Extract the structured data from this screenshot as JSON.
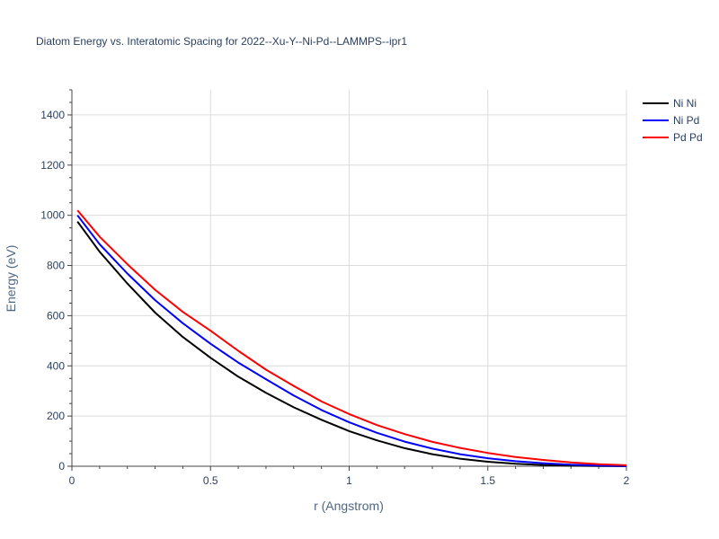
{
  "chart_data": {
    "type": "line",
    "title": "Diatom Energy vs. Interatomic Spacing for 2022--Xu-Y--Ni-Pd--LAMMPS--ipr1",
    "xlabel": "r (Angstrom)",
    "ylabel": "Energy (eV)",
    "xlim": [
      0,
      2
    ],
    "ylim": [
      0,
      1500
    ],
    "x_ticks": [
      0,
      0.5,
      1,
      1.5,
      2
    ],
    "x_tick_labels": [
      "0",
      "0.5",
      "1",
      "1.5",
      "2"
    ],
    "y_ticks": [
      0,
      200,
      400,
      600,
      800,
      1000,
      1200,
      1400
    ],
    "y_tick_labels": [
      "0",
      "200",
      "400",
      "600",
      "800",
      "1000",
      "1200",
      "1400"
    ],
    "grid": true,
    "legend_position": "top-right",
    "series": [
      {
        "name": "Ni Ni",
        "color": "#000000",
        "x": [
          0.02,
          0.1,
          0.2,
          0.3,
          0.4,
          0.5,
          0.6,
          0.7,
          0.8,
          0.9,
          1.0,
          1.1,
          1.2,
          1.3,
          1.4,
          1.5,
          1.6,
          1.7,
          1.8,
          1.9,
          2.0
        ],
        "y": [
          975,
          855,
          728,
          612,
          515,
          432,
          357,
          293,
          235,
          185,
          140,
          103,
          72,
          48,
          30,
          18,
          10,
          5,
          2,
          1,
          0
        ]
      },
      {
        "name": "Ni Pd",
        "color": "#0000ff",
        "x": [
          0.02,
          0.1,
          0.2,
          0.3,
          0.4,
          0.5,
          0.6,
          0.7,
          0.8,
          0.9,
          1.0,
          1.1,
          1.2,
          1.3,
          1.4,
          1.5,
          1.6,
          1.7,
          1.8,
          1.9,
          2.0
        ],
        "y": [
          1000,
          885,
          768,
          662,
          570,
          488,
          413,
          347,
          282,
          224,
          175,
          133,
          98,
          70,
          48,
          32,
          20,
          12,
          6,
          3,
          1
        ]
      },
      {
        "name": "Pd Pd",
        "color": "#ff0000",
        "x": [
          0.02,
          0.1,
          0.2,
          0.3,
          0.4,
          0.5,
          0.6,
          0.7,
          0.8,
          0.9,
          1.0,
          1.1,
          1.2,
          1.3,
          1.4,
          1.5,
          1.6,
          1.7,
          1.8,
          1.9,
          2.0
        ],
        "y": [
          1020,
          915,
          805,
          703,
          615,
          540,
          460,
          385,
          320,
          258,
          208,
          164,
          128,
          97,
          73,
          53,
          37,
          25,
          15,
          8,
          4
        ]
      }
    ]
  }
}
